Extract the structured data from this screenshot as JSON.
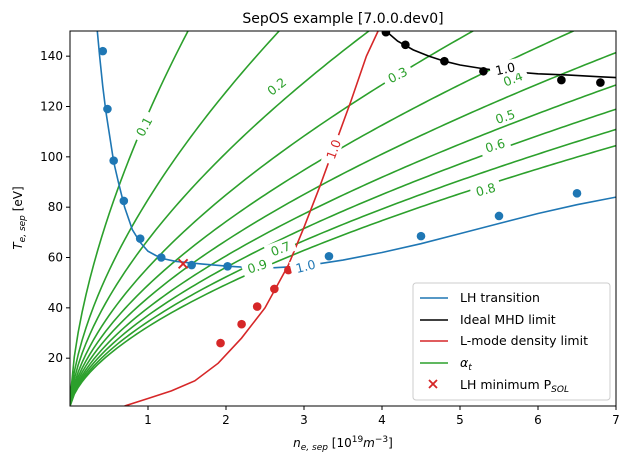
{
  "chart_data": {
    "type": "line",
    "title": "SepOS example [7.0.0.dev0]",
    "xlabel_main": "n",
    "xlabel_sub": "e, sep",
    "xlabel_unit_pre": " [10",
    "xlabel_unit_sup1": "19",
    "xlabel_unit_m": "m",
    "xlabel_unit_sup2": "−3",
    "xlabel_unit_post": "]",
    "ylabel_main": "T",
    "ylabel_sub": "e, sep",
    "ylabel_unit": " [eV]",
    "xlim": [
      0,
      7
    ],
    "ylim": [
      1,
      150
    ],
    "xticks": [
      1,
      2,
      3,
      4,
      5,
      6,
      7
    ],
    "xtick_labels": [
      "1",
      "2",
      "3",
      "4",
      "5",
      "6",
      "7"
    ],
    "yticks": [
      20,
      40,
      60,
      80,
      100,
      120,
      140
    ],
    "ytick_labels": [
      "20",
      "40",
      "60",
      "80",
      "100",
      "120",
      "140"
    ],
    "grid": false,
    "legend_position": "lower-right",
    "legend": [
      {
        "label": "LH transition",
        "marker": "line",
        "color": "#1f77b4"
      },
      {
        "label": "Ideal MHD limit",
        "marker": "line",
        "color": "#000000"
      },
      {
        "label": "L-mode density limit",
        "marker": "line",
        "color": "#d62728"
      },
      {
        "label_main": "α",
        "label_sub": "t",
        "marker": "line",
        "color": "#2ca02c"
      },
      {
        "label_main": "LH minimum P",
        "label_sub": "SOL",
        "marker": "x",
        "color": "#d62728"
      }
    ],
    "series": [
      {
        "key": "lh_line",
        "color": "#1f77b4",
        "x": [
          0.35,
          0.38,
          0.42,
          0.46,
          0.5,
          0.56,
          0.62,
          0.7,
          0.8,
          0.9,
          1.0,
          1.1,
          1.2,
          1.35,
          1.5,
          1.7,
          2.0,
          2.3,
          2.6,
          3.0,
          3.5,
          4.0,
          4.5,
          5.0,
          5.5,
          6.0,
          6.5,
          7.0
        ],
        "y": [
          150,
          140,
          128,
          118,
          110,
          98,
          90,
          80,
          71,
          66,
          62.5,
          60.8,
          59.5,
          58.5,
          58,
          57.4,
          56.6,
          56,
          55.9,
          56.6,
          59,
          62,
          65.5,
          69.5,
          73.5,
          77.5,
          81,
          84
        ]
      },
      {
        "key": "lh_points",
        "color": "#1f77b4",
        "x": [
          0.42,
          0.48,
          0.56,
          0.69,
          0.9,
          1.17,
          1.56,
          2.02,
          2.5,
          3.32,
          4.5,
          5.5,
          6.5
        ],
        "y": [
          142,
          119,
          98.5,
          82.5,
          67.5,
          60,
          57,
          56.5,
          57,
          60.5,
          68.5,
          76.5,
          85.5
        ]
      },
      {
        "key": "mhd_line",
        "color": "#000000",
        "x": [
          4.05,
          4.2,
          4.4,
          4.6,
          4.8,
          5.0,
          5.3,
          5.6,
          6.0,
          6.4,
          6.8,
          7.0
        ],
        "y": [
          150,
          146,
          142.5,
          140,
          138,
          136.5,
          135,
          134,
          133,
          132.5,
          131.8,
          131.5
        ]
      },
      {
        "key": "mhd_points",
        "color": "#000000",
        "x": [
          4.05,
          4.3,
          4.8,
          5.3,
          5.8,
          6.3,
          6.8
        ],
        "y": [
          149.5,
          144.5,
          138,
          134,
          131.5,
          130.5,
          129.5
        ]
      },
      {
        "key": "ldl_line",
        "color": "#d62728",
        "x": [
          0.7,
          1.0,
          1.3,
          1.6,
          1.9,
          2.2,
          2.5,
          2.8,
          3.0,
          3.2,
          3.4,
          3.6,
          3.8,
          3.95
        ],
        "y": [
          1,
          4,
          7,
          11,
          18,
          28,
          40,
          57,
          72,
          88,
          105,
          122,
          140,
          150
        ]
      },
      {
        "key": "ldl_points",
        "color": "#d62728",
        "x": [
          1.93,
          2.2,
          2.4,
          2.62,
          2.8
        ],
        "y": [
          26,
          33.5,
          40.5,
          47.5,
          55
        ]
      }
    ],
    "alpha_t_contours": {
      "color": "#2ca02c",
      "shape_exponent": 0.6,
      "series": [
        {
          "level": "0.1",
          "y_at_x1": 117
        },
        {
          "level": "0.2",
          "y_at_x1": 83
        },
        {
          "level": "0.3",
          "y_at_x1": 67
        },
        {
          "level": "0.4",
          "y_at_x1": 56
        },
        {
          "level": "0.5",
          "y_at_x1": 49
        },
        {
          "level": "0.6",
          "y_at_x1": 44
        },
        {
          "level": "0.7",
          "y_at_x1": 40
        },
        {
          "level": "0.8",
          "y_at_x1": 37
        },
        {
          "level": "0.9",
          "y_at_x1": 34.5
        },
        {
          "level": "1.0",
          "y_at_x1": 32.5
        }
      ]
    },
    "lh_minimum": {
      "x": 1.45,
      "y": 57.5,
      "color": "#d62728"
    },
    "contour_labels": [
      {
        "text": "0.1",
        "x": 0.95,
        "y": 112,
        "rot": -62,
        "color": "#2ca02c"
      },
      {
        "text": "0.2",
        "x": 2.65,
        "y": 128,
        "rot": -38,
        "color": "#2ca02c"
      },
      {
        "text": "0.3",
        "x": 4.2,
        "y": 132.5,
        "rot": -27,
        "color": "#2ca02c"
      },
      {
        "text": "0.4",
        "x": 5.68,
        "y": 131,
        "rot": -22,
        "color": "#2ca02c"
      },
      {
        "text": "0.5",
        "x": 5.58,
        "y": 116,
        "rot": -18,
        "color": "#2ca02c"
      },
      {
        "text": "0.6",
        "x": 5.45,
        "y": 104.5,
        "rot": -17,
        "color": "#2ca02c"
      },
      {
        "text": "0.7",
        "x": 2.7,
        "y": 63.5,
        "rot": -20,
        "color": "#2ca02c"
      },
      {
        "text": "0.8",
        "x": 5.33,
        "y": 87,
        "rot": -15,
        "color": "#2ca02c"
      },
      {
        "text": "0.9",
        "x": 2.4,
        "y": 56.5,
        "rot": -18,
        "color": "#2ca02c"
      },
      {
        "text": "1.0",
        "x": 3.02,
        "y": 56.5,
        "rot": -14,
        "color": "#1f77b4"
      },
      {
        "text": "1.0",
        "x": 5.58,
        "y": 135,
        "rot": -12,
        "color": "#000000"
      },
      {
        "text": "1.0",
        "x": 3.38,
        "y": 103,
        "rot": -70,
        "color": "#d62728"
      }
    ]
  }
}
